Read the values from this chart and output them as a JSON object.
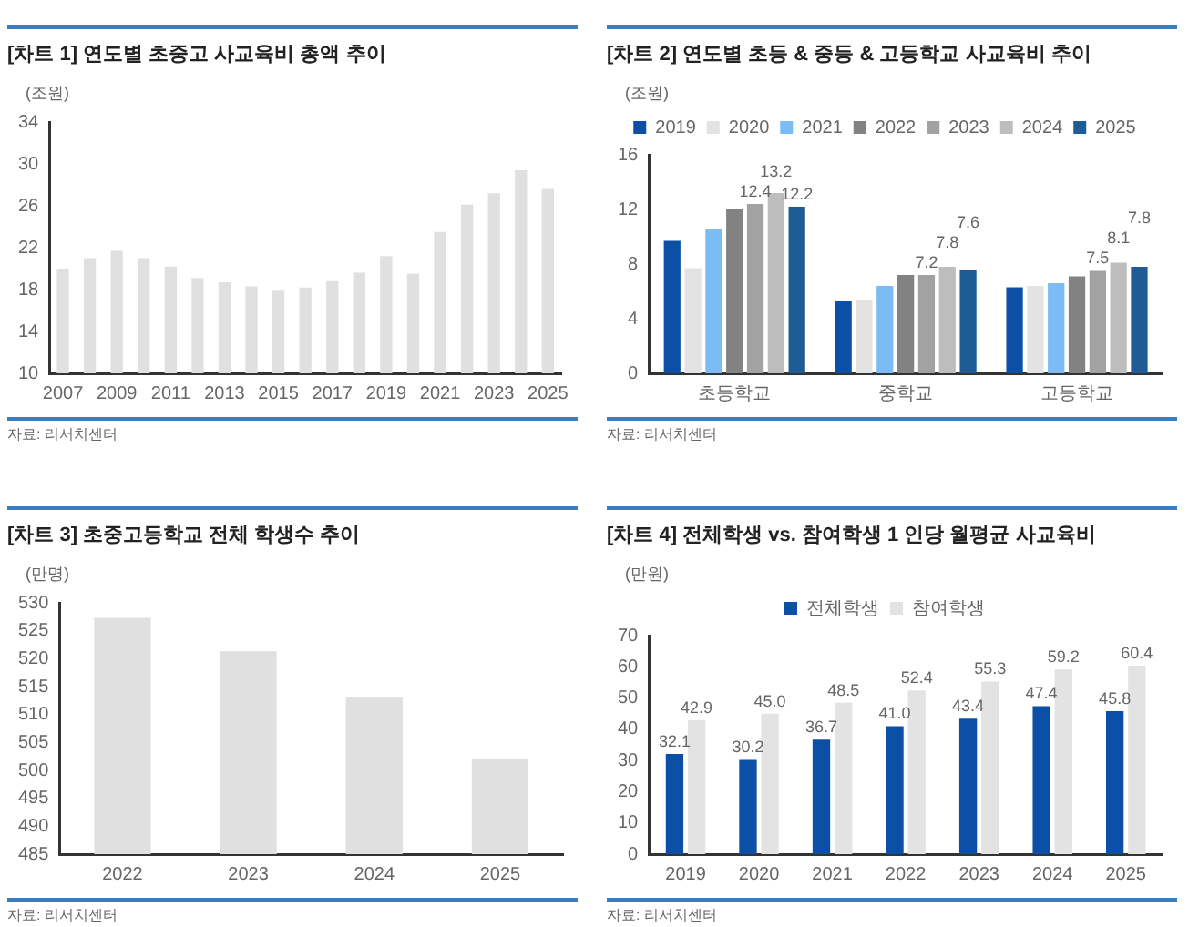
{
  "chart_data": [
    {
      "type": "bar",
      "title": "[차트 1] 연도별 초중고 사교육비 총액 추이",
      "ylabel": "(조원)",
      "categories": [
        "2007",
        null,
        "2009",
        null,
        "2011",
        null,
        "2013",
        null,
        "2015",
        null,
        "2017",
        null,
        "2019",
        null,
        "2021",
        null,
        "2023",
        null,
        "2025"
      ],
      "values": [
        20.0,
        21.0,
        21.7,
        21.0,
        20.2,
        19.1,
        18.7,
        18.3,
        17.9,
        18.2,
        18.8,
        19.6,
        21.2,
        19.5,
        23.5,
        26.1,
        27.2,
        29.4,
        27.6
      ],
      "color": "#e0e0e0",
      "ylim": [
        10,
        34
      ],
      "yticks": [
        10,
        14,
        18,
        22,
        26,
        30,
        34
      ],
      "grid": false,
      "legend": false,
      "annotations": [
        "자료: 리서치센터"
      ]
    },
    {
      "type": "bar",
      "title": "[차트 2] 연도별 초등 & 중등 & 고등학교 사교육비 추이",
      "ylabel": "(조원)",
      "categories": [
        "초등학교",
        "중학교",
        "고등학교"
      ],
      "series": [
        {
          "name": "2019",
          "color": "#0b50a6",
          "values": [
            9.7,
            5.3,
            6.3
          ]
        },
        {
          "name": "2020",
          "color": "#e3e3e3",
          "values": [
            7.7,
            5.4,
            6.4
          ]
        },
        {
          "name": "2021",
          "color": "#7cbcf4",
          "values": [
            10.6,
            6.4,
            6.6
          ]
        },
        {
          "name": "2022",
          "color": "#828282",
          "values": [
            12.0,
            7.2,
            7.1
          ]
        },
        {
          "name": "2023",
          "color": "#a2a2a2",
          "values": [
            12.4,
            7.2,
            7.5
          ],
          "value_labels": [
            "12.4",
            "7.2",
            "7.5"
          ]
        },
        {
          "name": "2024",
          "color": "#bdbdbd",
          "values": [
            13.2,
            7.8,
            8.1
          ],
          "value_labels": [
            "13.2",
            "7.8",
            "8.1"
          ]
        },
        {
          "name": "2025",
          "color": "#1f5b95",
          "values": [
            12.2,
            7.6,
            7.8
          ],
          "value_labels": [
            "12.2",
            "7.6",
            "7.8"
          ]
        }
      ],
      "ylim": [
        0,
        16
      ],
      "yticks": [
        0,
        4,
        8,
        12,
        16
      ],
      "grid": false,
      "legend": "top",
      "annotations": [
        "자료: 리서치센터"
      ]
    },
    {
      "type": "bar",
      "title": "[차트 3] 초중고등학교 전체 학생수 추이",
      "ylabel": "(만명)",
      "categories": [
        "2022",
        "2023",
        "2024",
        "2025"
      ],
      "values": [
        527.3,
        521.3,
        513.2,
        502.1
      ],
      "color": "#e0e0e0",
      "ylim": [
        485,
        530
      ],
      "yticks": [
        485,
        490,
        495,
        500,
        505,
        510,
        515,
        520,
        525,
        530
      ],
      "grid": false,
      "legend": false,
      "annotations": [
        "자료: 리서치센터"
      ]
    },
    {
      "type": "bar",
      "title": "[차트 4] 전체학생 vs. 참여학생 1 인당 월평균 사교육비",
      "ylabel": "(만원)",
      "categories": [
        "2019",
        "2020",
        "2021",
        "2022",
        "2023",
        "2024",
        "2025"
      ],
      "series": [
        {
          "name": "전체학생",
          "color": "#0b50a6",
          "values": [
            32.1,
            30.2,
            36.7,
            41.0,
            43.4,
            47.4,
            45.8
          ],
          "value_labels": [
            "32.1",
            "30.2",
            "36.7",
            "41.0",
            "43.4",
            "47.4",
            "45.8"
          ]
        },
        {
          "name": "참여학생",
          "color": "#e3e3e3",
          "values": [
            42.9,
            45.0,
            48.5,
            52.4,
            55.3,
            59.2,
            60.4
          ],
          "value_labels": [
            "42.9",
            "45.0",
            "48.5",
            "52.4",
            "55.3",
            "59.2",
            "60.4"
          ]
        }
      ],
      "ylim": [
        0,
        70
      ],
      "yticks": [
        0,
        10,
        20,
        30,
        40,
        50,
        60,
        70
      ],
      "grid": false,
      "legend": "top",
      "annotations": [
        "자료: 리서치센터"
      ]
    }
  ]
}
